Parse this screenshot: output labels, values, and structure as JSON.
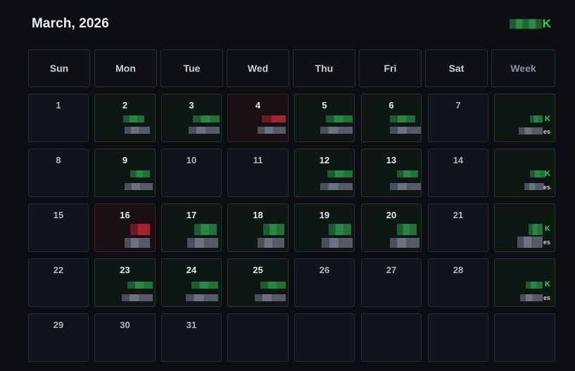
{
  "calendar": {
    "title": "March, 2026",
    "month_total_suffix": "K",
    "weekday_headers": [
      "Sun",
      "Mon",
      "Tue",
      "Wed",
      "Thu",
      "Fri",
      "Sat"
    ],
    "week_header": "Week",
    "week_rows": [
      {
        "days": [
          "1",
          "2",
          "3",
          "4",
          "5",
          "6",
          "7"
        ],
        "week_total_suffix": "K",
        "week_trades_suffix": "es"
      },
      {
        "days": [
          "8",
          "9",
          "10",
          "11",
          "12",
          "13",
          "14"
        ],
        "week_total_suffix": "K",
        "week_trades_suffix": "es"
      },
      {
        "days": [
          "15",
          "16",
          "17",
          "18",
          "19",
          "20",
          "21"
        ],
        "week_total_suffix": "K",
        "week_trades_suffix": "es"
      },
      {
        "days": [
          "22",
          "23",
          "24",
          "25",
          "26",
          "27",
          "28"
        ],
        "week_total_suffix": "K",
        "week_trades_suffix": "es"
      },
      {
        "days": [
          "29",
          "30",
          "31",
          "",
          "",
          "",
          ""
        ]
      }
    ]
  },
  "colors": {
    "background": "#0c0e14",
    "profit_green": "#3ecb63",
    "loss_red": "#a8222e",
    "cell_border": "#262a33"
  }
}
